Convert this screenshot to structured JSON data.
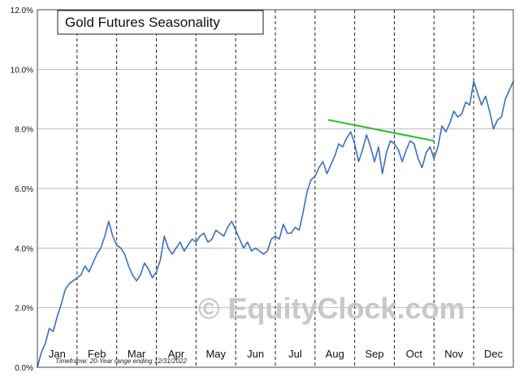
{
  "chart_data": {
    "type": "line",
    "title": "Gold Futures Seasonality",
    "ylim": [
      0,
      12
    ],
    "y_ticks": [
      0,
      2,
      4,
      6,
      8,
      10,
      12
    ],
    "y_tick_labels": [
      "0.0%",
      "2.0%",
      "4.0%",
      "6.0%",
      "8.0%",
      "10.0%",
      "12.0%"
    ],
    "months": [
      "Jan",
      "Feb",
      "Mar",
      "Apr",
      "May",
      "Jun",
      "Jul",
      "Aug",
      "Sep",
      "Oct",
      "Nov",
      "Dec"
    ],
    "grid": true,
    "series": [
      {
        "color": "#3a6fc4",
        "x": [
          0,
          0.1,
          0.2,
          0.3,
          0.4,
          0.5,
          0.6,
          0.7,
          0.8,
          0.9,
          1.0,
          1.1,
          1.2,
          1.3,
          1.4,
          1.5,
          1.6,
          1.7,
          1.8,
          1.9,
          2.0,
          2.1,
          2.2,
          2.3,
          2.4,
          2.5,
          2.6,
          2.7,
          2.8,
          2.9,
          3.0,
          3.1,
          3.2,
          3.3,
          3.4,
          3.5,
          3.6,
          3.7,
          3.8,
          3.9,
          4.0,
          4.1,
          4.2,
          4.3,
          4.4,
          4.5,
          4.6,
          4.7,
          4.8,
          4.9,
          5.0,
          5.1,
          5.2,
          5.3,
          5.4,
          5.5,
          5.6,
          5.7,
          5.8,
          5.9,
          6.0,
          6.1,
          6.2,
          6.3,
          6.4,
          6.5,
          6.6,
          6.7,
          6.8,
          6.9,
          7.0,
          7.1,
          7.2,
          7.3,
          7.4,
          7.5,
          7.6,
          7.7,
          7.8,
          7.9,
          8.0,
          8.1,
          8.2,
          8.3,
          8.4,
          8.5,
          8.6,
          8.7,
          8.8,
          8.9,
          9.0,
          9.1,
          9.2,
          9.3,
          9.4,
          9.5,
          9.6,
          9.7,
          9.8,
          9.9,
          10.0,
          10.1,
          10.2,
          10.3,
          10.4,
          10.5,
          10.6,
          10.7,
          10.8,
          10.9,
          11.0,
          11.1,
          11.2,
          11.3,
          11.4,
          11.5,
          11.6,
          11.7,
          11.8,
          11.9,
          12.0
        ],
        "y": [
          0.0,
          0.5,
          0.8,
          1.3,
          1.2,
          1.7,
          2.1,
          2.6,
          2.8,
          2.9,
          3.0,
          3.1,
          3.4,
          3.2,
          3.5,
          3.8,
          4.0,
          4.4,
          4.9,
          4.4,
          4.1,
          4.0,
          3.8,
          3.4,
          3.1,
          2.9,
          3.1,
          3.5,
          3.3,
          3.0,
          3.2,
          3.6,
          4.4,
          4.0,
          3.8,
          4.0,
          4.2,
          3.9,
          4.1,
          4.3,
          4.2,
          4.4,
          4.5,
          4.2,
          4.3,
          4.6,
          4.5,
          4.4,
          4.7,
          4.9,
          4.6,
          4.3,
          4.0,
          4.2,
          3.9,
          4.0,
          3.9,
          3.8,
          3.9,
          4.3,
          4.4,
          4.3,
          4.8,
          4.5,
          4.5,
          4.7,
          4.6,
          5.2,
          5.9,
          6.3,
          6.4,
          6.7,
          6.9,
          6.5,
          6.8,
          7.1,
          7.5,
          7.4,
          7.7,
          7.9,
          7.5,
          6.9,
          7.3,
          7.8,
          7.4,
          6.9,
          7.4,
          6.5,
          7.2,
          7.6,
          7.5,
          7.3,
          6.9,
          7.3,
          7.6,
          7.5,
          7.0,
          6.7,
          7.2,
          7.4,
          7.0,
          7.4,
          8.1,
          7.9,
          8.2,
          8.6,
          8.4,
          8.5,
          8.9,
          8.8,
          9.6,
          9.2,
          8.8,
          9.1,
          8.6,
          8.0,
          8.3,
          8.4,
          9.0,
          9.3,
          9.6
        ]
      },
      {
        "color": "#22c022",
        "x": [
          7.35,
          10.0
        ],
        "y": [
          8.3,
          7.6
        ]
      }
    ],
    "annotations": {
      "footnote": "Timeframe: 20-Year range ending 12/31/2022",
      "watermark": "© EquityClock.com"
    }
  }
}
